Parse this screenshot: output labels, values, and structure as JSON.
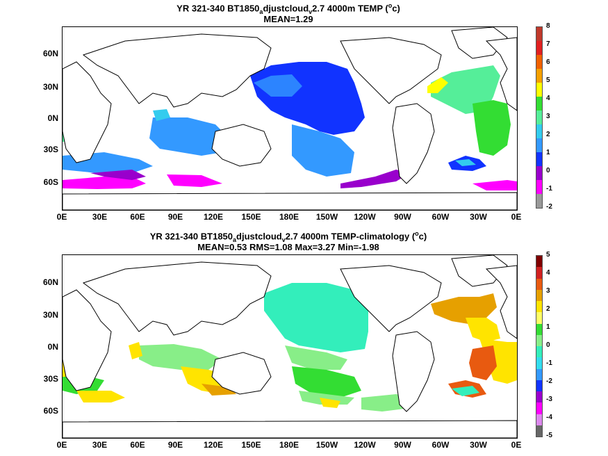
{
  "panels": [
    {
      "title_parts": [
        "YR 321-340 BT1850",
        "a",
        "djustcloud",
        "v",
        "2.7 4000m TEMP (",
        "o",
        "c)"
      ],
      "subtitle": "MEAN=1.29",
      "colorbar": {
        "ticks": [
          "8",
          "7",
          "6",
          "5",
          "4",
          "3",
          "2",
          "1",
          "0",
          "-1",
          "-2"
        ],
        "colors": [
          "#c0392b",
          "#e02020",
          "#f06000",
          "#f5a000",
          "#ffff00",
          "#33dd33",
          "#55ee99",
          "#33ccee",
          "#3399ff",
          "#1133ff",
          "#9900cc",
          "#ff00ff",
          "#999999"
        ]
      }
    },
    {
      "title_parts": [
        "YR 321-340 BT1850",
        "a",
        "djustcloud",
        "v",
        "2.7 4000m TEMP-climatology (",
        "o",
        "c)"
      ],
      "subtitle": "MEAN=0.53   RMS=1.08   Max=3.27   Min=-1.98",
      "colorbar": {
        "ticks": [
          "5",
          "4",
          "3",
          "2",
          "1",
          "0",
          "-1",
          "-2",
          "-3",
          "-4",
          "-5"
        ],
        "colors": [
          "#800000",
          "#d02020",
          "#e85a10",
          "#e6a000",
          "#ffe400",
          "#ffff66",
          "#33dd33",
          "#88ee88",
          "#33eebb",
          "#33ddee",
          "#3399ff",
          "#1133ff",
          "#9900cc",
          "#ff00ff",
          "#dd88ee",
          "#666666"
        ]
      }
    }
  ],
  "lat_labels": [
    "60N",
    "30N",
    "0N",
    "30S",
    "60S"
  ],
  "lon_labels": [
    "0E",
    "30E",
    "60E",
    "90E",
    "120E",
    "150E",
    "180E",
    "150W",
    "120W",
    "90W",
    "60W",
    "30W",
    "0E"
  ]
}
